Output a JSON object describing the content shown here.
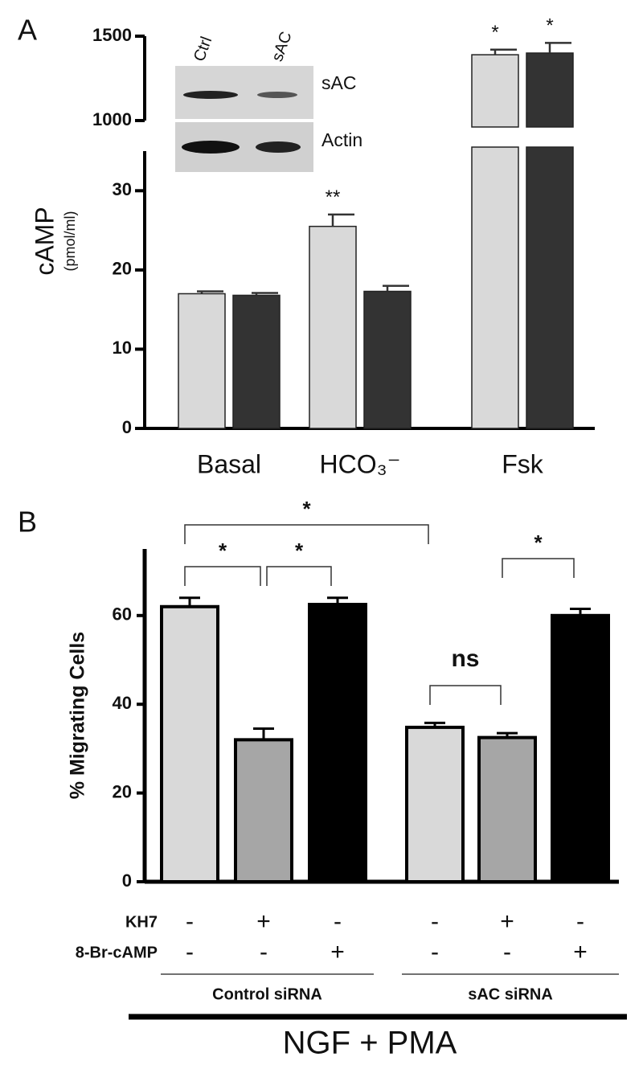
{
  "chart_data": [
    {
      "type": "bar",
      "panel_label": "A",
      "y_label": "cAMP",
      "y_sublabel": "(pmol/ml)",
      "categories": [
        "Basal",
        "HCO₃⁻",
        "Fsk"
      ],
      "series": [
        {
          "color": "#d9d9d9",
          "values": [
            17,
            25.5,
            1390
          ],
          "errors": [
            0.3,
            1.5,
            30
          ]
        },
        {
          "color": "#333333",
          "values": [
            16.8,
            17.3,
            1400
          ],
          "errors": [
            0.3,
            0.7,
            60
          ]
        }
      ],
      "ylim": [
        0,
        35
      ],
      "yticks": [
        0,
        10,
        20,
        30
      ],
      "y_break": {
        "ylim": [
          1000,
          1500
        ],
        "yticks": [
          1000,
          1500
        ]
      },
      "annotations": [
        {
          "text": "**",
          "category": 1,
          "series": 0
        },
        {
          "text": "*",
          "category": 2,
          "series": 0
        },
        {
          "text": "*",
          "category": 2,
          "series": 1
        }
      ],
      "inset": {
        "lanes": [
          "Ctrl",
          "sAC"
        ],
        "rows": [
          "sAC",
          "Actin"
        ]
      }
    },
    {
      "type": "bar",
      "panel_label": "B",
      "y_label": "% Migrating Cells",
      "values": [
        62,
        32,
        62.5,
        34.8,
        32.5,
        60
      ],
      "errors": [
        2,
        2.5,
        1.5,
        1,
        1,
        1.5
      ],
      "colors": [
        "#d9d9d9",
        "#a6a6a6",
        "#000000",
        "#d9d9d9",
        "#a6a6a6",
        "#000000"
      ],
      "ylim": [
        0,
        75
      ],
      "yticks": [
        0,
        20,
        40,
        60
      ],
      "treatments": [
        {
          "name": "KH7",
          "signs": [
            "-",
            "+",
            "-",
            "-",
            "+",
            "-"
          ]
        },
        {
          "name": "8-Br-cAMP",
          "signs": [
            "-",
            "-",
            "+",
            "-",
            "-",
            "+"
          ]
        }
      ],
      "groups": [
        "Control siRNA",
        "sAC siRNA"
      ],
      "brackets": [
        {
          "from": 0,
          "to": 1,
          "label": "*"
        },
        {
          "from": 1,
          "to": 2,
          "label": "*"
        },
        {
          "from": 0,
          "to": 3,
          "label": "*"
        },
        {
          "from": 3,
          "to": 4,
          "label": "ns"
        },
        {
          "from": 4,
          "to": 5,
          "label": "*"
        }
      ],
      "footer": "NGF + PMA"
    }
  ]
}
